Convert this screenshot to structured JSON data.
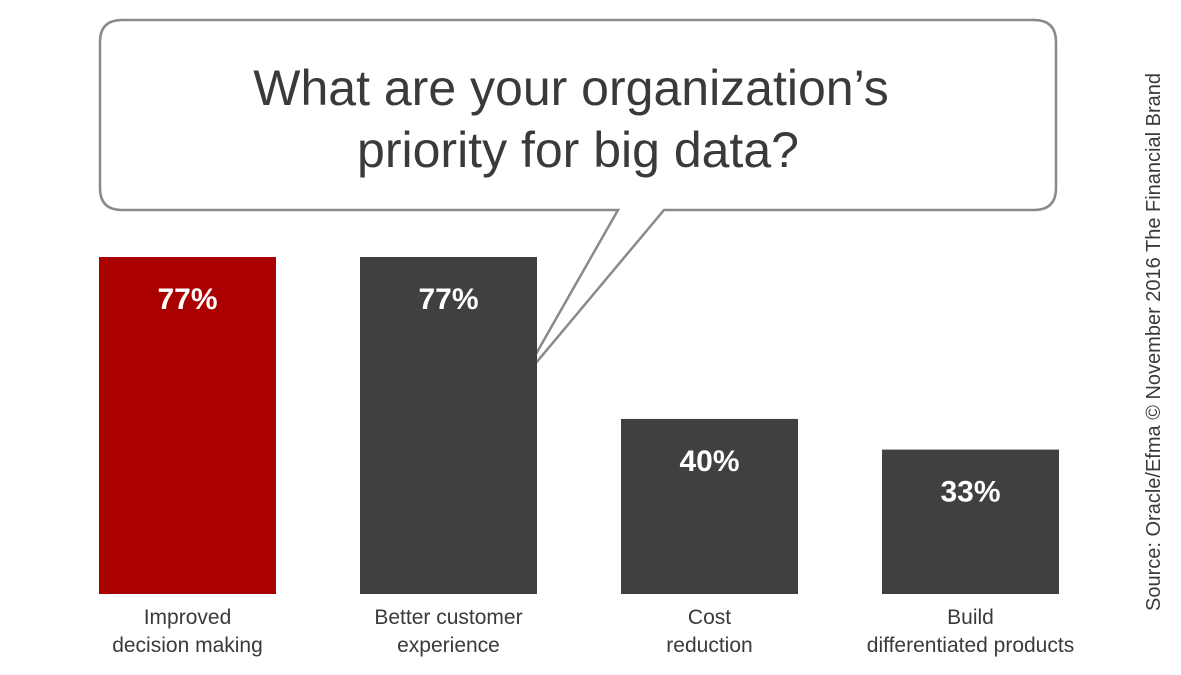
{
  "chart_data": {
    "type": "bar",
    "title": "What are your organization’s priority for big data?",
    "title_lines": [
      "What are your organization’s",
      "priority for big data?"
    ],
    "categories": [
      "Improved decision making",
      "Better customer experience",
      "Cost reduction",
      "Build differentiated products"
    ],
    "category_lines": [
      [
        "Improved",
        "decision making"
      ],
      [
        "Better customer",
        "experience"
      ],
      [
        "Cost",
        "reduction"
      ],
      [
        "Build",
        "differentiated products"
      ]
    ],
    "values": [
      77,
      77,
      40,
      33
    ],
    "value_labels": [
      "77%",
      "77%",
      "40%",
      "33%"
    ],
    "unit": "%",
    "ylim": [
      0,
      100
    ],
    "grid": false,
    "legend": "none",
    "xlabel": "",
    "ylabel": ""
  },
  "colors": {
    "highlight_bar": "#ab0000",
    "bar": "#404040",
    "text": "#3a3a3a",
    "bubble_stroke": "#8a8a8a"
  },
  "source": "Source: Oracle/Efma © November 2016 The Financial Brand"
}
